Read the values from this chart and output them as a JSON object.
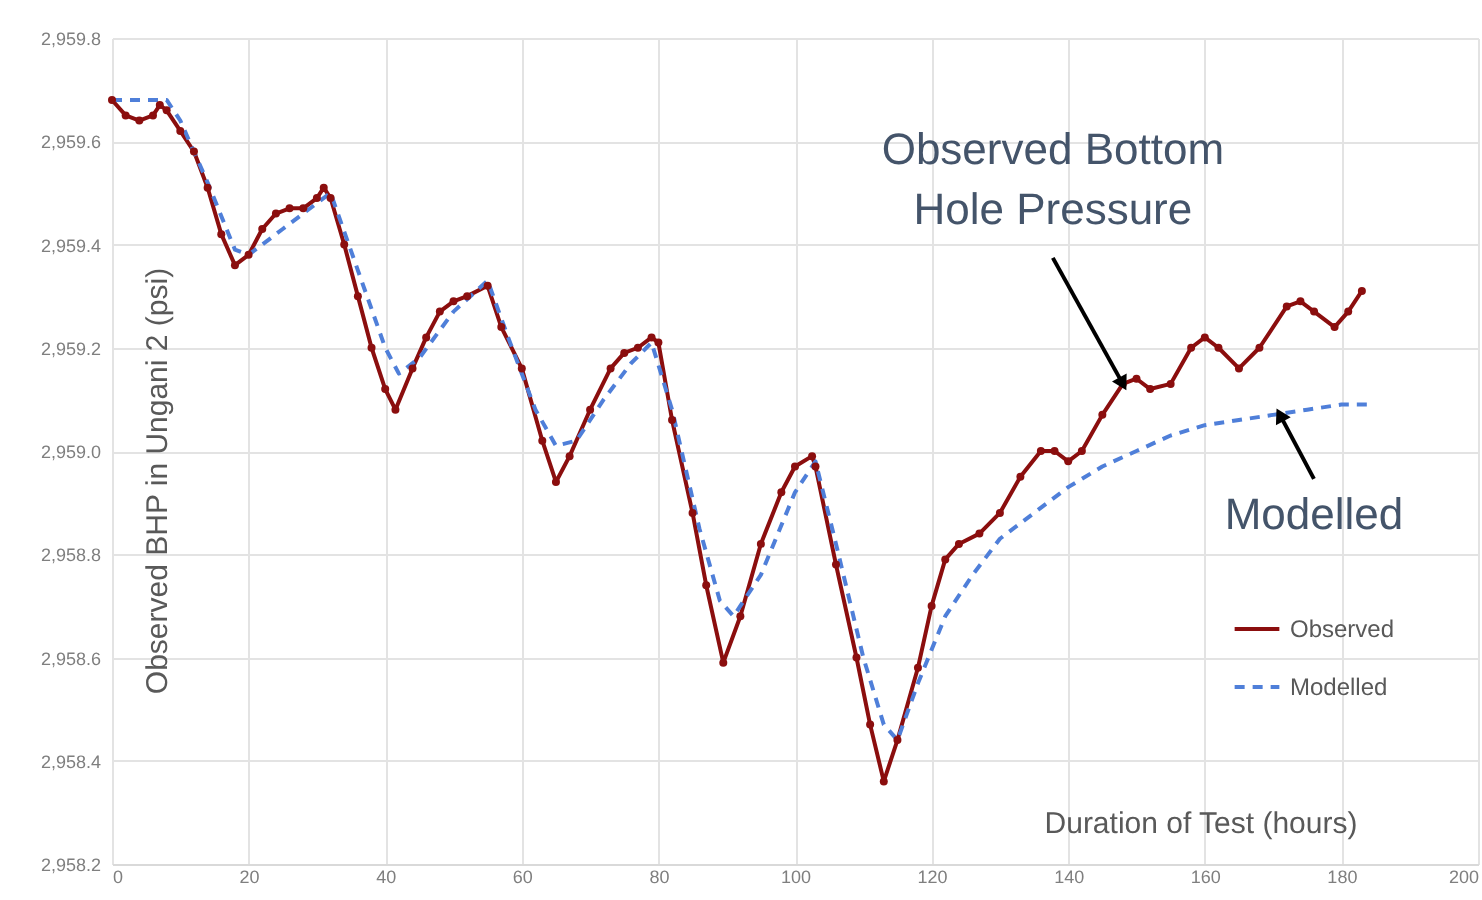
{
  "chart_data": {
    "type": "line",
    "xlabel": "Duration of Test (hours)",
    "ylabel": "Observed BHP in Ungani 2 (psi)",
    "xlim": [
      0,
      200
    ],
    "xticks": [
      0,
      20,
      40,
      60,
      80,
      100,
      120,
      140,
      160,
      180,
      200
    ],
    "ylim": [
      2958.2,
      2959.8
    ],
    "yticks": [
      {
        "value": 2958.2,
        "label": "2,958.2"
      },
      {
        "value": 2958.4,
        "label": "2,958.4"
      },
      {
        "value": 2958.6,
        "label": "2,958.6"
      },
      {
        "value": 2958.8,
        "label": "2,958.8"
      },
      {
        "value": 2959.0,
        "label": "2,959.0"
      },
      {
        "value": 2959.2,
        "label": "2,959.2"
      },
      {
        "value": 2959.4,
        "label": "2,959.4"
      },
      {
        "value": 2959.6,
        "label": "2,959.6"
      },
      {
        "value": 2959.8,
        "label": "2,959.8"
      }
    ],
    "grid": true,
    "legend": "right",
    "series": [
      {
        "name": "Observed",
        "color": "#8b0e0e",
        "marker": "circle",
        "line_style": "solid",
        "x": [
          0,
          2,
          4,
          6,
          7,
          8,
          10,
          12,
          14,
          16,
          18,
          20,
          22,
          24,
          26,
          28,
          30,
          31,
          32,
          34,
          36,
          38,
          40,
          41.5,
          44,
          46,
          48,
          50,
          52,
          55,
          57,
          60,
          63,
          65,
          67,
          70,
          73,
          75,
          77,
          79,
          80,
          82,
          85,
          87,
          89.5,
          92,
          95,
          98,
          100,
          102.5,
          103,
          106,
          109,
          111,
          113,
          115,
          118,
          120,
          122,
          124,
          127,
          130,
          133,
          136,
          138,
          140,
          142,
          145,
          148,
          150,
          152,
          155,
          158,
          160,
          162,
          165,
          168,
          172,
          174,
          176,
          179,
          181,
          183
        ],
        "values": [
          2959.68,
          2959.65,
          2959.64,
          2959.65,
          2959.67,
          2959.66,
          2959.62,
          2959.58,
          2959.51,
          2959.42,
          2959.36,
          2959.38,
          2959.43,
          2959.46,
          2959.47,
          2959.47,
          2959.49,
          2959.51,
          2959.49,
          2959.4,
          2959.3,
          2959.2,
          2959.12,
          2959.08,
          2959.16,
          2959.22,
          2959.27,
          2959.29,
          2959.3,
          2959.32,
          2959.24,
          2959.16,
          2959.02,
          2958.94,
          2958.99,
          2959.08,
          2959.16,
          2959.19,
          2959.2,
          2959.22,
          2959.21,
          2959.06,
          2958.88,
          2958.74,
          2958.59,
          2958.68,
          2958.82,
          2958.92,
          2958.97,
          2958.99,
          2958.97,
          2958.78,
          2958.6,
          2958.47,
          2958.36,
          2958.44,
          2958.58,
          2958.7,
          2958.79,
          2958.82,
          2958.84,
          2958.88,
          2958.95,
          2959.0,
          2959.0,
          2958.98,
          2959.0,
          2959.07,
          2959.13,
          2959.14,
          2959.12,
          2959.13,
          2959.2,
          2959.22,
          2959.2,
          2959.16,
          2959.2,
          2959.28,
          2959.29,
          2959.27,
          2959.24,
          2959.27,
          2959.31
        ]
      },
      {
        "name": "Modelled",
        "color": "#4f7fd9",
        "marker": "none",
        "line_style": "dashed",
        "x": [
          0,
          8,
          10,
          14,
          18,
          20,
          25,
          30,
          32,
          36,
          40,
          42,
          45,
          50,
          55,
          58,
          62,
          65,
          68,
          72,
          76,
          79,
          82,
          86,
          89,
          91,
          95,
          100,
          103,
          106,
          110,
          113,
          115,
          118,
          122,
          126,
          130,
          135,
          140,
          145,
          150,
          155,
          160,
          165,
          170,
          175,
          180,
          184
        ],
        "values": [
          2959.68,
          2959.68,
          2959.64,
          2959.52,
          2959.39,
          2959.38,
          2959.43,
          2959.48,
          2959.5,
          2959.35,
          2959.2,
          2959.15,
          2959.18,
          2959.27,
          2959.33,
          2959.22,
          2959.08,
          2959.01,
          2959.02,
          2959.1,
          2959.17,
          2959.21,
          2959.08,
          2958.85,
          2958.71,
          2958.68,
          2958.76,
          2958.92,
          2958.98,
          2958.82,
          2958.6,
          2958.47,
          2958.44,
          2958.55,
          2958.68,
          2958.76,
          2958.83,
          2958.88,
          2958.93,
          2958.97,
          2959.0,
          2959.03,
          2959.05,
          2959.06,
          2959.07,
          2959.08,
          2959.09,
          2959.09
        ]
      }
    ],
    "annotations": [
      {
        "text": "Observed Bottom\nHole Pressure",
        "x": 148,
        "y": 2959.13
      },
      {
        "text": "Modelled",
        "x": 171,
        "y": 2959.07
      }
    ]
  }
}
